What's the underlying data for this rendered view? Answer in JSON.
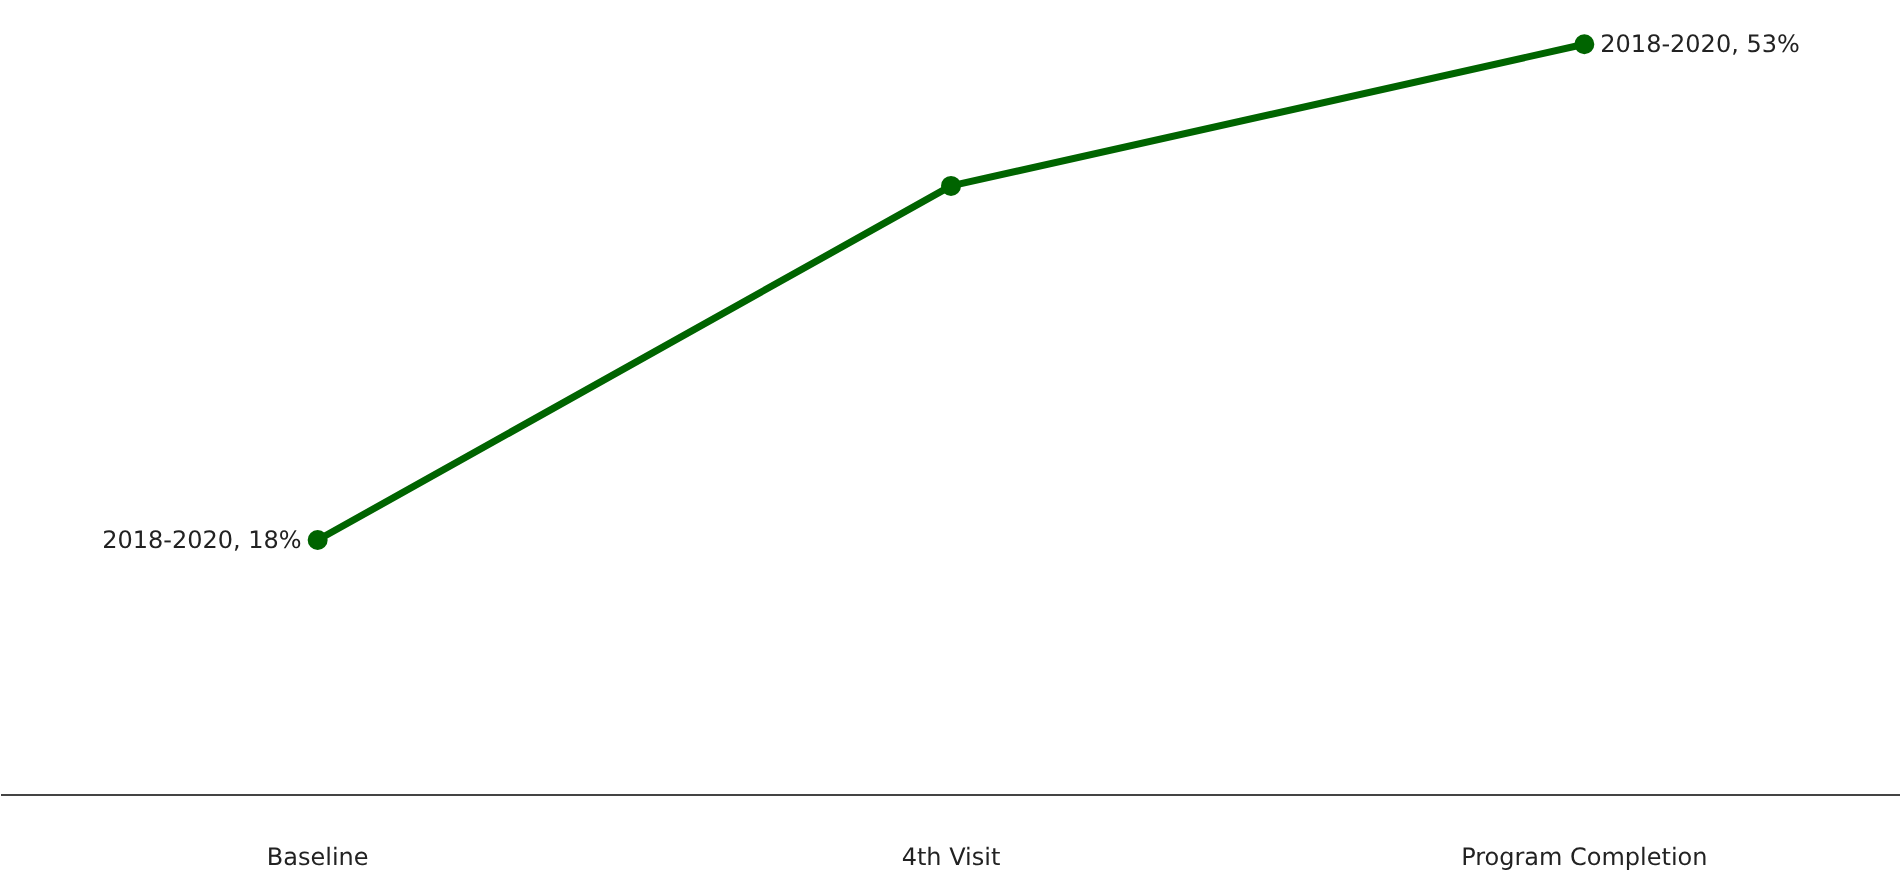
{
  "chart_data": {
    "type": "line",
    "categories": [
      "Baseline",
      "4th Visit",
      "Program Completion"
    ],
    "series": [
      {
        "color": "#006400",
        "values": [
          18,
          43,
          53
        ],
        "value_labels": [
          "2018-2020, 18%",
          null,
          "2018-2020, 53%"
        ]
      }
    ],
    "tick_labels": "x",
    "grid": false,
    "marker": "circle",
    "line_style": "solid"
  }
}
